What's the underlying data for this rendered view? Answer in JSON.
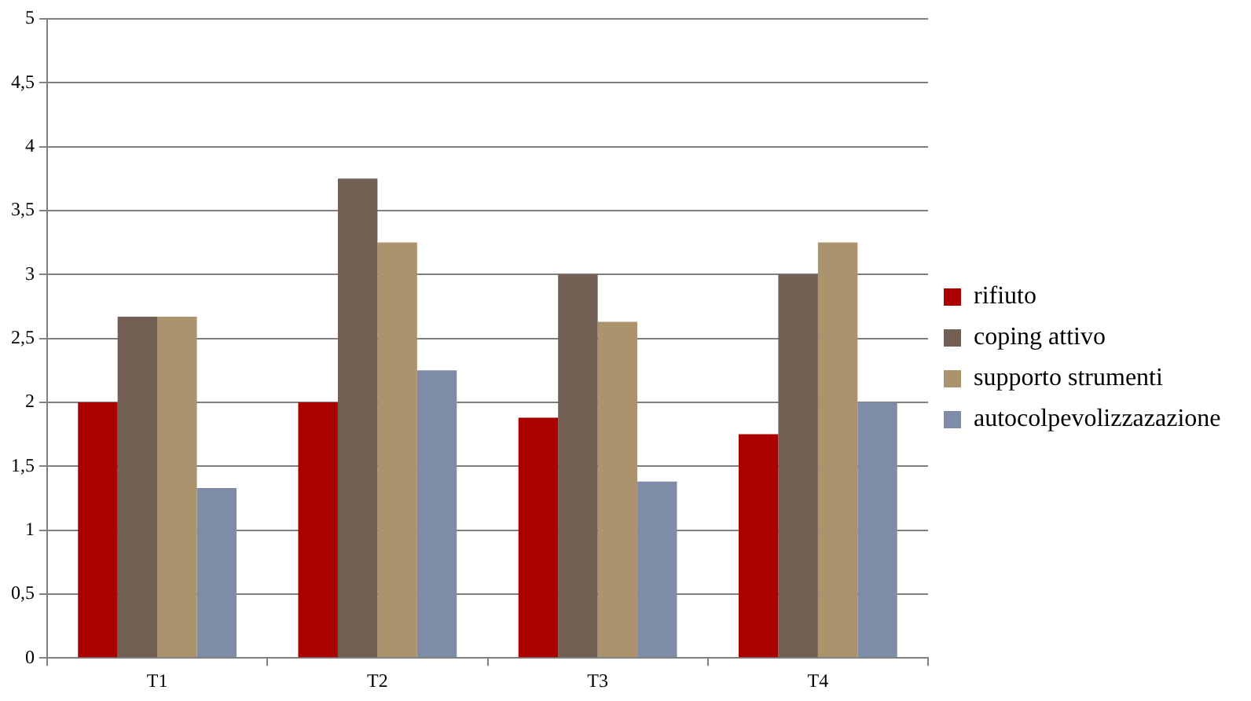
{
  "chart_data": {
    "type": "bar",
    "categories": [
      "T1",
      "T2",
      "T3",
      "T4"
    ],
    "series": [
      {
        "name": "rifiuto",
        "color": "#aa0000",
        "values": [
          2,
          2,
          1.88,
          1.75
        ]
      },
      {
        "name": "coping attivo",
        "color": "#725f53",
        "values": [
          2.67,
          3.75,
          3,
          3
        ]
      },
      {
        "name": "supporto strumenti",
        "color": "#ab936d",
        "values": [
          2.67,
          3.25,
          2.63,
          3.25
        ]
      },
      {
        "name": "autocolpevolizzazazione",
        "color": "#7f8ca8",
        "values": [
          1.33,
          2.25,
          1.38,
          2
        ]
      }
    ],
    "ylim": [
      0,
      5
    ],
    "yticks": [
      0,
      {
        "value": 0.5,
        "label": "0,5"
      },
      1,
      {
        "value": 1.5,
        "label": "1,5"
      },
      2,
      {
        "value": 2.5,
        "label": "2,5"
      },
      3,
      {
        "value": 3.5,
        "label": "3,5"
      },
      4,
      {
        "value": 4.5,
        "label": "4,5"
      },
      5
    ],
    "grid": "y",
    "legend": "right"
  }
}
